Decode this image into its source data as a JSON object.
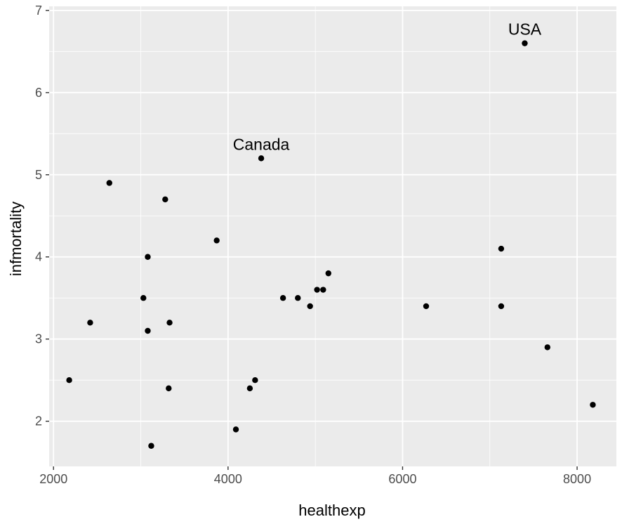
{
  "chart_data": {
    "type": "scatter",
    "xlabel": "healthexp",
    "ylabel": "infmortality",
    "xlim": [
      1950,
      8450
    ],
    "ylim": [
      1.45,
      7.05
    ],
    "x_ticks": [
      2000,
      4000,
      6000,
      8000
    ],
    "y_ticks": [
      2,
      3,
      4,
      5,
      6,
      7
    ],
    "grid": true,
    "series": [
      {
        "x": [
          2180,
          2420,
          2640,
          3030,
          3080,
          3080,
          3120,
          3280,
          3320,
          3330,
          3870,
          4090,
          4250,
          4310,
          4380,
          4630,
          4800,
          4940,
          5020,
          5090,
          5150,
          6270,
          7130,
          7130,
          7400,
          7660,
          8180
        ],
        "y": [
          2.5,
          3.2,
          4.9,
          3.5,
          4.0,
          3.1,
          1.7,
          4.7,
          2.4,
          3.2,
          4.2,
          1.9,
          2.4,
          2.5,
          5.2,
          3.5,
          3.5,
          3.4,
          3.6,
          3.6,
          3.8,
          3.4,
          4.1,
          3.4,
          6.6,
          2.9,
          2.2
        ]
      }
    ],
    "annotations": [
      {
        "text": "Canada",
        "x": 4380,
        "y": 5.2
      },
      {
        "text": "USA",
        "x": 7400,
        "y": 6.6
      }
    ]
  },
  "colors": {
    "panel_background": "#ebebeb",
    "grid": "#ffffff",
    "point": "#000000",
    "tick": "#333333",
    "tick_label": "#4d4d4d"
  }
}
